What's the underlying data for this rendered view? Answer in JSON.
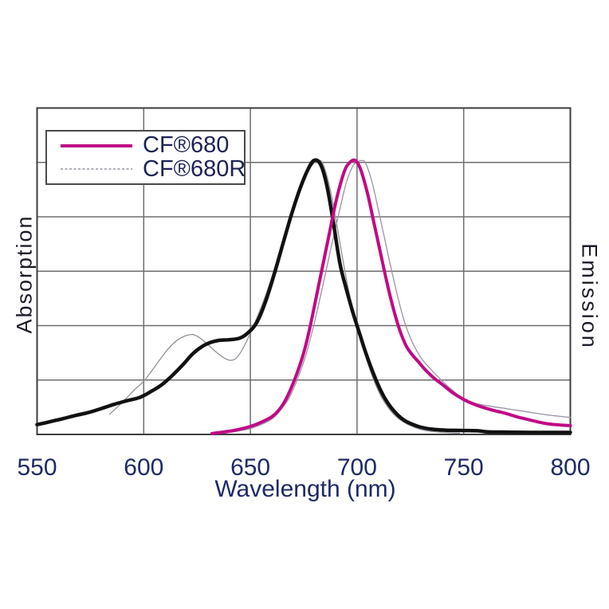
{
  "chart_data": {
    "type": "line",
    "title": "",
    "xlabel": "Wavelength (nm)",
    "ylabel_left": "Absorption",
    "ylabel_right": "Emission",
    "xlim": [
      550,
      800
    ],
    "x_ticks": [
      550,
      600,
      650,
      700,
      750,
      800
    ],
    "ylim": [
      0,
      1
    ],
    "y_grid_divisions": 6,
    "grid": true,
    "legend_position": "top-left",
    "colors": {
      "grid": "#6e6e6e",
      "border": "#3c3c3c",
      "tick_text": "#1e2a66",
      "axis_text": "#1b1b26",
      "cf680": "#c00985",
      "cf680r": "#96939e"
    },
    "legend": [
      {
        "label": "CF®680",
        "color": "#c00985",
        "style": "solid"
      },
      {
        "label": "CF®680R",
        "color": "#96939e",
        "style": "dashed"
      }
    ],
    "series": [
      {
        "name": "CF680R absorption",
        "color": "#91919b",
        "width": 1.3,
        "points": [
          [
            584,
            0.062
          ],
          [
            588,
            0.086
          ],
          [
            592,
            0.112
          ],
          [
            596,
            0.139
          ],
          [
            600,
            0.163
          ],
          [
            604,
            0.197
          ],
          [
            608,
            0.233
          ],
          [
            612,
            0.266
          ],
          [
            616,
            0.29
          ],
          [
            620,
            0.303
          ],
          [
            623,
            0.306
          ],
          [
            626,
            0.297
          ],
          [
            630,
            0.276
          ],
          [
            634,
            0.252
          ],
          [
            638,
            0.233
          ],
          [
            641,
            0.227
          ],
          [
            644,
            0.238
          ],
          [
            648,
            0.282
          ],
          [
            652,
            0.341
          ],
          [
            656,
            0.406
          ],
          [
            660,
            0.481
          ],
          [
            664,
            0.566
          ],
          [
            668,
            0.652
          ],
          [
            672,
            0.732
          ],
          [
            676,
            0.796
          ],
          [
            680,
            0.833
          ],
          [
            682,
            0.84
          ],
          [
            684,
            0.829
          ],
          [
            687,
            0.763
          ],
          [
            690,
            0.662
          ],
          [
            693,
            0.548
          ],
          [
            696,
            0.443
          ],
          [
            699,
            0.358
          ],
          [
            702,
            0.283
          ],
          [
            705,
            0.219
          ],
          [
            708,
            0.164
          ],
          [
            711,
            0.12
          ],
          [
            714,
            0.088
          ],
          [
            717,
            0.063
          ],
          [
            720,
            0.046
          ],
          [
            724,
            0.03
          ],
          [
            728,
            0.019
          ],
          [
            733,
            0.011
          ],
          [
            741,
            0.006
          ],
          [
            748,
            0.004
          ]
        ]
      },
      {
        "name": "CF680R emission",
        "color": "#9a92a3",
        "width": 1.3,
        "points": [
          [
            638,
            0.004
          ],
          [
            644,
            0.01
          ],
          [
            650,
            0.018
          ],
          [
            655,
            0.03
          ],
          [
            660,
            0.047
          ],
          [
            664,
            0.073
          ],
          [
            668,
            0.11
          ],
          [
            672,
            0.168
          ],
          [
            676,
            0.243
          ],
          [
            680,
            0.342
          ],
          [
            684,
            0.457
          ],
          [
            688,
            0.577
          ],
          [
            692,
            0.692
          ],
          [
            695,
            0.772
          ],
          [
            698,
            0.822
          ],
          [
            700,
            0.834
          ],
          [
            702,
            0.839
          ],
          [
            704,
            0.831
          ],
          [
            707,
            0.774
          ],
          [
            710,
            0.688
          ],
          [
            713,
            0.598
          ],
          [
            716,
            0.508
          ],
          [
            719,
            0.424
          ],
          [
            722,
            0.35
          ],
          [
            725,
            0.296
          ],
          [
            728,
            0.256
          ],
          [
            731,
            0.226
          ],
          [
            734,
            0.204
          ],
          [
            738,
            0.176
          ],
          [
            742,
            0.151
          ],
          [
            747,
            0.123
          ],
          [
            752,
            0.104
          ],
          [
            757,
            0.093
          ],
          [
            763,
            0.086
          ],
          [
            769,
            0.08
          ],
          [
            775,
            0.074
          ],
          [
            781,
            0.068
          ],
          [
            787,
            0.062
          ],
          [
            793,
            0.057
          ],
          [
            800,
            0.052
          ]
        ]
      },
      {
        "name": "CF680 absorption",
        "color": "#111111",
        "width": 4.5,
        "points": [
          [
            550,
            0.03
          ],
          [
            556,
            0.039
          ],
          [
            562,
            0.048
          ],
          [
            568,
            0.058
          ],
          [
            574,
            0.067
          ],
          [
            580,
            0.079
          ],
          [
            586,
            0.092
          ],
          [
            592,
            0.103
          ],
          [
            598,
            0.113
          ],
          [
            603,
            0.13
          ],
          [
            608,
            0.15
          ],
          [
            613,
            0.178
          ],
          [
            618,
            0.211
          ],
          [
            623,
            0.247
          ],
          [
            627,
            0.268
          ],
          [
            631,
            0.281
          ],
          [
            635,
            0.288
          ],
          [
            640,
            0.29
          ],
          [
            645,
            0.295
          ],
          [
            649,
            0.312
          ],
          [
            653,
            0.343
          ],
          [
            657,
            0.405
          ],
          [
            661,
            0.487
          ],
          [
            665,
            0.578
          ],
          [
            669,
            0.668
          ],
          [
            673,
            0.748
          ],
          [
            677,
            0.812
          ],
          [
            680,
            0.84
          ],
          [
            683,
            0.826
          ],
          [
            686,
            0.758
          ],
          [
            689,
            0.645
          ],
          [
            692,
            0.523
          ],
          [
            695,
            0.445
          ],
          [
            698,
            0.375
          ],
          [
            701,
            0.313
          ],
          [
            704,
            0.252
          ],
          [
            707,
            0.198
          ],
          [
            710,
            0.15
          ],
          [
            713,
            0.111
          ],
          [
            716,
            0.082
          ],
          [
            719,
            0.06
          ],
          [
            722,
            0.044
          ],
          [
            726,
            0.031
          ],
          [
            730,
            0.022
          ],
          [
            735,
            0.016
          ],
          [
            742,
            0.013
          ],
          [
            750,
            0.012
          ],
          [
            757,
            0.011
          ],
          [
            761,
            0.008
          ],
          [
            770,
            0.007
          ],
          [
            785,
            0.006
          ],
          [
            800,
            0.006
          ]
        ]
      },
      {
        "name": "CF680 emission",
        "color": "#c00985",
        "width": 4,
        "points": [
          [
            632,
            0.003
          ],
          [
            637,
            0.007
          ],
          [
            642,
            0.012
          ],
          [
            647,
            0.019
          ],
          [
            652,
            0.029
          ],
          [
            656,
            0.04
          ],
          [
            660,
            0.054
          ],
          [
            663,
            0.072
          ],
          [
            666,
            0.1
          ],
          [
            669,
            0.14
          ],
          [
            672,
            0.19
          ],
          [
            675,
            0.25
          ],
          [
            678,
            0.33
          ],
          [
            681,
            0.425
          ],
          [
            684,
            0.52
          ],
          [
            687,
            0.615
          ],
          [
            690,
            0.71
          ],
          [
            693,
            0.785
          ],
          [
            695,
            0.82
          ],
          [
            698,
            0.84
          ],
          [
            700,
            0.834
          ],
          [
            702,
            0.806
          ],
          [
            705,
            0.736
          ],
          [
            708,
            0.646
          ],
          [
            711,
            0.556
          ],
          [
            714,
            0.466
          ],
          [
            717,
            0.386
          ],
          [
            720,
            0.32
          ],
          [
            723,
            0.272
          ],
          [
            726,
            0.243
          ],
          [
            729,
            0.221
          ],
          [
            732,
            0.198
          ],
          [
            736,
            0.173
          ],
          [
            740,
            0.153
          ],
          [
            745,
            0.127
          ],
          [
            750,
            0.107
          ],
          [
            755,
            0.092
          ],
          [
            760,
            0.081
          ],
          [
            765,
            0.072
          ],
          [
            770,
            0.064
          ],
          [
            775,
            0.054
          ],
          [
            780,
            0.046
          ],
          [
            785,
            0.038
          ],
          [
            790,
            0.032
          ],
          [
            795,
            0.029
          ],
          [
            800,
            0.027
          ]
        ]
      }
    ]
  }
}
